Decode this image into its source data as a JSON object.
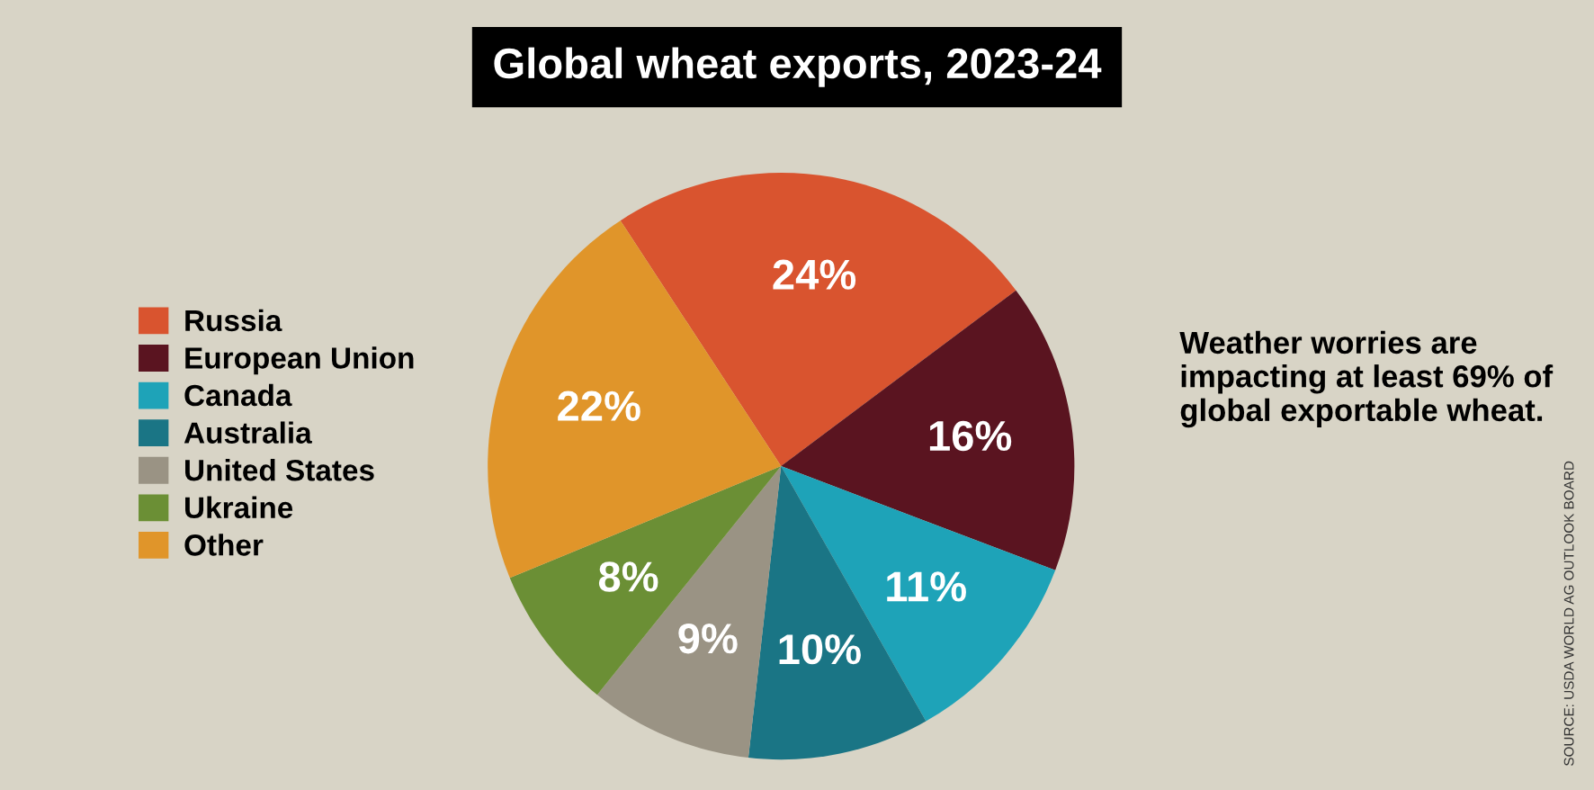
{
  "chart_data": {
    "type": "pie",
    "title": "Global wheat exports, 2023-24",
    "categories": [
      "Russia",
      "European Union",
      "Canada",
      "Australia",
      "United States",
      "Ukraine",
      "Other"
    ],
    "values": [
      24,
      16,
      11,
      10,
      9,
      8,
      22
    ],
    "colors": [
      "#d9542f",
      "#5a1420",
      "#1ea3b8",
      "#1a7585",
      "#9a9384",
      "#6b8f35",
      "#e0952a"
    ],
    "value_labels": [
      "24%",
      "16%",
      "11%",
      "10%",
      "9%",
      "8%",
      "22%"
    ],
    "legend": "left",
    "annotations": [
      "Weather worries are impacting at least 69% of global exportable wheat.",
      "SOURCE: USDA WORLD AG OUTLOOK BOARD"
    ]
  }
}
